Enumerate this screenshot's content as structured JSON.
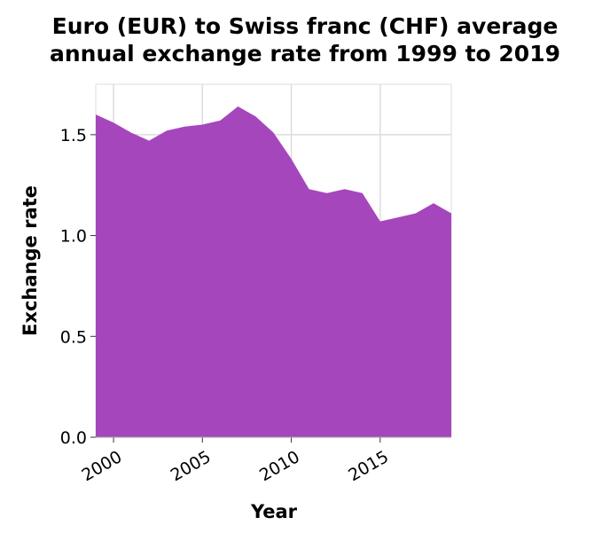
{
  "chart_data": {
    "type": "area",
    "title_lines": [
      "Euro (EUR) to Swiss franc (CHF) average",
      "annual exchange rate from 1999 to 2019"
    ],
    "xlabel": "Year",
    "ylabel": "Exchange rate",
    "xlim": [
      1999,
      2019
    ],
    "ylim": [
      0,
      1.75
    ],
    "x_ticks": [
      2000,
      2005,
      2010,
      2015
    ],
    "y_ticks": [
      0.0,
      0.5,
      1.0,
      1.5
    ],
    "y_tick_labels": [
      "0.0",
      "0.5",
      "1.0",
      "1.5"
    ],
    "grid": true,
    "fill_color": "#a646bd",
    "series": [
      {
        "x": [
          1999,
          2000,
          2001,
          2002,
          2003,
          2004,
          2005,
          2006,
          2007,
          2008,
          2009,
          2010,
          2011,
          2012,
          2013,
          2014,
          2015,
          2016,
          2017,
          2018,
          2019
        ],
        "values": [
          1.6,
          1.56,
          1.51,
          1.47,
          1.52,
          1.54,
          1.55,
          1.57,
          1.64,
          1.59,
          1.51,
          1.38,
          1.23,
          1.21,
          1.23,
          1.21,
          1.07,
          1.09,
          1.11,
          1.16,
          1.11
        ]
      }
    ]
  }
}
